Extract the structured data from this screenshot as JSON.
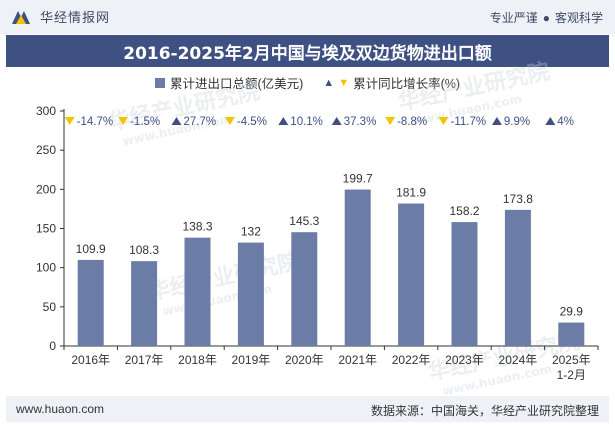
{
  "header": {
    "brand": "华经情报网",
    "slogan_left": "专业严谨",
    "slogan_dot": "●",
    "slogan_right": "客观科学"
  },
  "title": "2016-2025年2月中国与埃及双边货物进出口额",
  "legend": {
    "bar_label": "累计进出口总额(亿美元)",
    "growth_label": "累计同比增长率(%)"
  },
  "watermark": {
    "cn": "华经产业研究院",
    "url": "www.huaon.com"
  },
  "footer": {
    "url": "www.huaon.com",
    "source": "数据来源：中国海关，华经产业研究院整理"
  },
  "colors": {
    "bar": "#6b7ca6",
    "up": "#3f5183",
    "down": "#f2c500",
    "growth_text": "#3f5183"
  },
  "chart_data": {
    "type": "bar",
    "categories": [
      "2016年",
      "2017年",
      "2018年",
      "2019年",
      "2020年",
      "2021年",
      "2022年",
      "2023年",
      "2024年",
      "2025年\n1-2月"
    ],
    "values": [
      109.9,
      108.3,
      138.3,
      132,
      145.3,
      199.7,
      181.9,
      158.2,
      173.8,
      29.9
    ],
    "value_labels": [
      "109.9",
      "108.3",
      "138.3",
      "132",
      "145.3",
      "199.7",
      "181.9",
      "158.2",
      "173.8",
      "29.9"
    ],
    "growth_labels": [
      "-14.7%",
      "-1.5%",
      "27.7%",
      "-4.5%",
      "10.1%",
      "37.3%",
      "-8.8%",
      "-11.7%",
      "9.9%",
      "4%"
    ],
    "growth_direction": [
      "down",
      "down",
      "up",
      "down",
      "up",
      "up",
      "down",
      "down",
      "up",
      "up"
    ],
    "ylim": [
      0,
      300
    ],
    "yticks": [
      0,
      50,
      100,
      150,
      200,
      250,
      300
    ],
    "legend_position": "top-center",
    "grid": false
  }
}
